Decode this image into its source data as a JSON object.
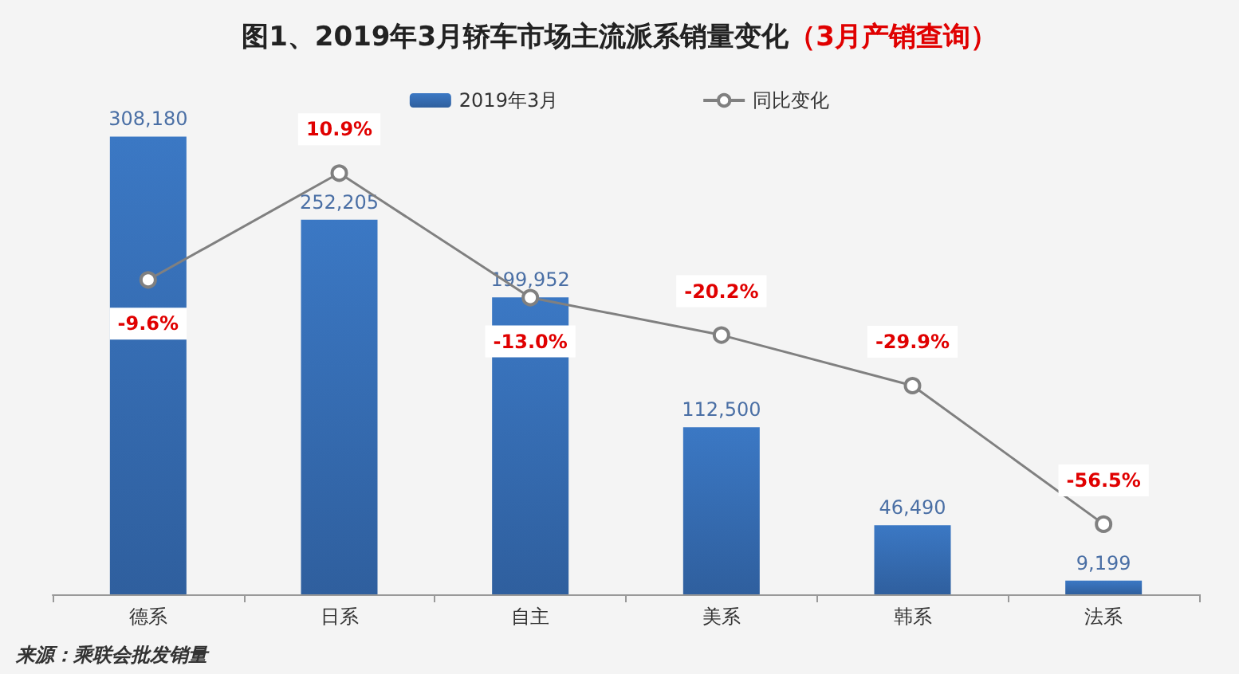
{
  "chart_data": {
    "type": "bar",
    "title": "图1、2019年3月轿车市场主流派系销量变化",
    "subtitle": "（3月产销查询）",
    "categories": [
      "德系",
      "日系",
      "自主",
      "美系",
      "韩系",
      "法系"
    ],
    "series": [
      {
        "name": "2019年3月",
        "color": "#3b78c4",
        "values": [
          308180,
          252205,
          199952,
          112500,
          46490,
          9199
        ],
        "value_labels": [
          "308,180",
          "252,205",
          "199,952",
          "112,500",
          "46,490",
          "9,199"
        ]
      },
      {
        "name": "同比变化",
        "type": "line",
        "axis": "y2",
        "color": "#808080",
        "marker": "circle",
        "values": [
          -9.6,
          10.9,
          -13.0,
          -20.2,
          -29.9,
          -56.5
        ],
        "value_labels": [
          "-9.6%",
          "10.9%",
          "-13.0%",
          "-20.2%",
          "-29.9%",
          "-56.5%"
        ]
      }
    ],
    "tick_labels": "x",
    "legend": "top",
    "grid": false,
    "annotations": [
      "来源：乘联会批发销量"
    ]
  }
}
